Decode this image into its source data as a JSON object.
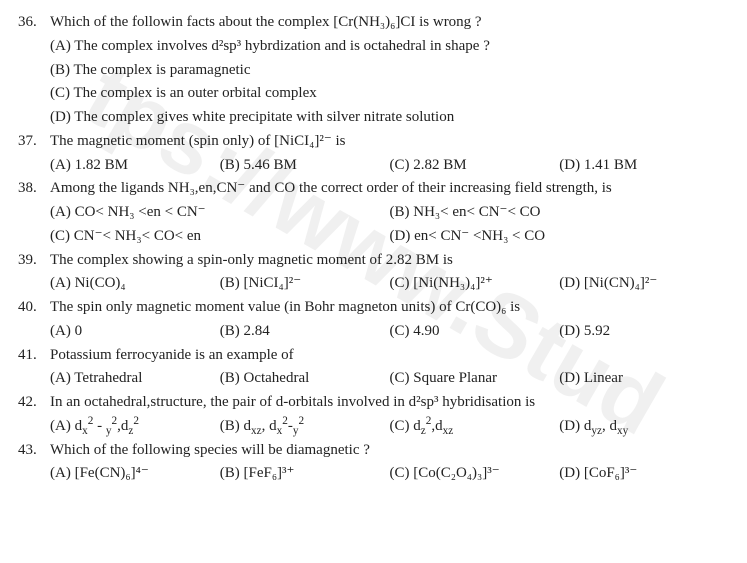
{
  "watermark": "tps://www.Stud",
  "questions": [
    {
      "num": "36.",
      "text": "Which of the followin facts about the complex [Cr(NH₃)₆]CI is wrong ?",
      "stacked_options": [
        "(A) The complex involves d²sp³ hybrdization and is octahedral in shape ?",
        "(B) The complex is paramagnetic",
        "(C) The complex is an outer orbital complex",
        "(D) The complex gives white precipitate with silver nitrate solution"
      ]
    },
    {
      "num": "37.",
      "text": "The magnetic moment (spin only) of [NiCI₄]²⁻ is",
      "row_options": [
        "(A) 1.82 BM",
        "(B) 5.46 BM",
        "(C) 2.82 BM",
        "(D) 1.41 BM"
      ]
    },
    {
      "num": "38.",
      "text": "Among the ligands NH₃,en,CN⁻ and CO the correct order of their increasing field strength, is",
      "two_col_rows": [
        [
          "(A) CO< NH₃ <en < CN⁻",
          "(B) NH₃< en< CN⁻< CO"
        ],
        [
          "(C) CN⁻< NH₃< CO< en",
          "(D) en< CN⁻ <NH₃ < CO"
        ]
      ]
    },
    {
      "num": "39.",
      "text": "The complex showing a spin-only magnetic moment of 2.82 BM is",
      "row_options": [
        "(A) Ni(CO)₄",
        "(B) [NiCI₄]²⁻",
        "(C) [Ni(NH₃)₄]²⁺",
        "(D) [Ni(CN)₄]²⁻"
      ]
    },
    {
      "num": "40.",
      "text": "The spin only magnetic moment value (in Bohr magneton units) of Cr(CO)₆ is",
      "row_options": [
        "(A) 0",
        "(B) 2.84",
        "(C) 4.90",
        "(D) 5.92"
      ]
    },
    {
      "num": "41.",
      "text": "Potassium ferrocyanide is an example of",
      "row_options": [
        "(A) Tetrahedral",
        "(B) Octahedral",
        "(C) Square Planar",
        "(D) Linear"
      ]
    },
    {
      "num": "42.",
      "text": "In an octahedral,structure, the pair of d-orbitals involved in d²sp³ hybridisation is",
      "row_html_options": [
        "(A) d<sub>x</sub><sup>2</sup> - <sub>y</sub><sup>2</sup>,d<sub>z</sub><sup>2</sup>",
        "(B) d<sub>xz</sub>, d<sub>x</sub><sup>2</sup>-<sub>y</sub><sup>2</sup>",
        "(C) d<sub>z</sub><sup>2</sup>,d<sub>xz</sub>",
        "(D) d<sub>yz</sub>, d<sub>xy</sub>"
      ]
    },
    {
      "num": "43.",
      "text": "Which of the following species will be diamagnetic ?",
      "row_options": [
        "(A) [Fe(CN)₆]⁴⁻",
        "(B) [FeF₆]³⁺",
        "(C) [Co(C₂O₄)₃]³⁻",
        "(D) [CoF₆]³⁻"
      ]
    }
  ]
}
